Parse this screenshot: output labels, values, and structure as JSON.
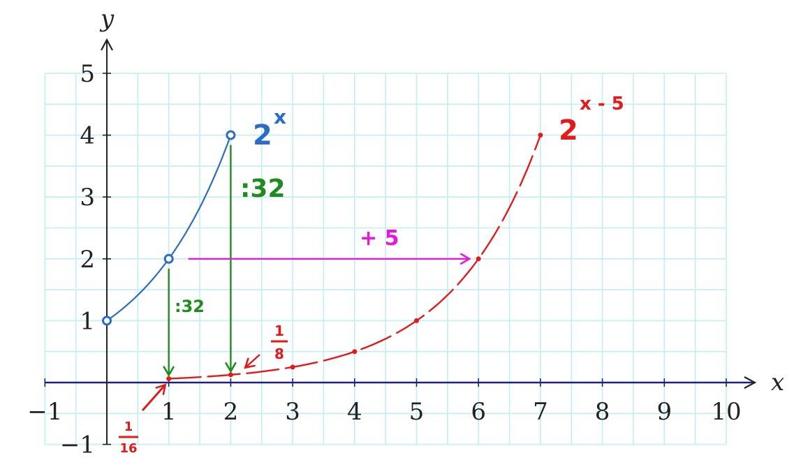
{
  "chart_data": {
    "type": "line",
    "xlabel": "x",
    "ylabel": "y",
    "xlim": [
      -1,
      10
    ],
    "ylim": [
      -1,
      5
    ],
    "grid": true,
    "x_ticks": [
      "−1",
      "1",
      "2",
      "3",
      "4",
      "5",
      "6",
      "7",
      "8",
      "9",
      "10"
    ],
    "y_ticks": [
      "−1",
      "1",
      "2",
      "3",
      "4",
      "5"
    ],
    "series": [
      {
        "name": "2",
        "exponent": "x",
        "color": "#2b6cc4",
        "x": [
          0,
          1,
          2
        ],
        "y": [
          1,
          2,
          4
        ]
      },
      {
        "name": "2",
        "exponent": "x - 5",
        "color": "#e41a1a",
        "x": [
          1,
          2,
          3,
          4,
          5,
          6,
          7
        ],
        "y": [
          0.0625,
          0.125,
          0.25,
          0.5,
          1,
          2,
          4
        ]
      }
    ],
    "annotations": [
      {
        "text": ":32",
        "color": "#1e8c1e",
        "from": [
          2,
          4
        ],
        "to": [
          2,
          0.125
        ]
      },
      {
        "text": ":32",
        "color": "#1e8c1e",
        "from": [
          1,
          2
        ],
        "to": [
          1,
          0.0625
        ]
      },
      {
        "text": "+ 5",
        "color": "#e619d9",
        "from": [
          1,
          2
        ],
        "to": [
          6,
          2
        ]
      },
      {
        "numerator": "1",
        "denominator": "8",
        "color": "#e41a1a",
        "points_to": [
          2,
          0.125
        ]
      },
      {
        "numerator": "1",
        "denominator": "16",
        "color": "#e41a1a",
        "points_to": [
          1,
          0.0625
        ]
      }
    ]
  },
  "colors": {
    "grid": "#bfeff2",
    "x_axis": "#1a237e",
    "y_axis": "#222222"
  }
}
